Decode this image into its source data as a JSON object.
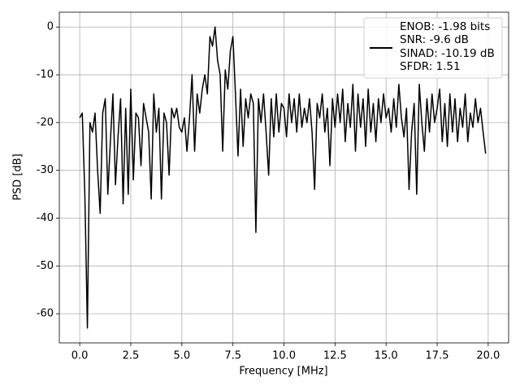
{
  "chart_data": {
    "type": "line",
    "xlabel": "Frequency [MHz]",
    "ylabel": "PSD [dB]",
    "x": [
      0,
      0.125,
      0.25,
      0.375,
      0.5,
      0.625,
      0.75,
      0.875,
      1,
      1.125,
      1.25,
      1.375,
      1.5,
      1.625,
      1.75,
      1.875,
      2,
      2.125,
      2.25,
      2.375,
      2.5,
      2.625,
      2.75,
      2.875,
      3,
      3.125,
      3.25,
      3.375,
      3.5,
      3.625,
      3.75,
      3.875,
      4,
      4.125,
      4.25,
      4.375,
      4.5,
      4.625,
      4.75,
      4.875,
      5,
      5.125,
      5.25,
      5.375,
      5.5,
      5.625,
      5.75,
      5.875,
      6,
      6.125,
      6.25,
      6.375,
      6.5,
      6.625,
      6.75,
      6.875,
      7,
      7.125,
      7.25,
      7.375,
      7.5,
      7.625,
      7.75,
      7.875,
      8,
      8.125,
      8.25,
      8.375,
      8.5,
      8.625,
      8.75,
      8.875,
      9,
      9.125,
      9.25,
      9.375,
      9.5,
      9.625,
      9.75,
      9.875,
      10,
      10.125,
      10.25,
      10.375,
      10.5,
      10.625,
      10.75,
      10.875,
      11,
      11.125,
      11.25,
      11.375,
      11.5,
      11.625,
      11.75,
      11.875,
      12,
      12.125,
      12.25,
      12.375,
      12.5,
      12.625,
      12.75,
      12.875,
      13,
      13.125,
      13.25,
      13.375,
      13.5,
      13.625,
      13.75,
      13.875,
      14,
      14.125,
      14.25,
      14.375,
      14.5,
      14.625,
      14.75,
      14.875,
      15,
      15.125,
      15.25,
      15.375,
      15.5,
      15.625,
      15.75,
      15.875,
      16,
      16.125,
      16.25,
      16.375,
      16.5,
      16.625,
      16.75,
      16.875,
      17,
      17.125,
      17.25,
      17.375,
      17.5,
      17.625,
      17.75,
      17.875,
      18,
      18.125,
      18.25,
      18.375,
      18.5,
      18.625,
      18.75,
      18.875,
      19,
      19.125,
      19.25,
      19.375,
      19.5,
      19.625,
      19.75,
      19.875
    ],
    "series": [
      {
        "name": "ENOB: -1.98 bits\nSNR: -9.6 dB\nSINAD: -10.19 dB\nSFDR: 1.51",
        "color": "#000000",
        "values": [
          -19,
          -18,
          -35,
          -63,
          -20,
          -22,
          -18,
          -30,
          -39,
          -18,
          -15,
          -35,
          -24,
          -14,
          -33,
          -23,
          -15,
          -37,
          -17,
          -35,
          -13,
          -32,
          -18,
          -19,
          -29,
          -16,
          -19,
          -22,
          -36,
          -14,
          -22,
          -17,
          -36,
          -18,
          -20,
          -31,
          -17,
          -19,
          -17,
          -21,
          -22,
          -19,
          -26,
          -19,
          -10,
          -26,
          -14,
          -18,
          -13,
          -10,
          -14,
          -2,
          -4,
          0,
          -7,
          -10,
          -26,
          -9,
          -13,
          -5,
          -2,
          -14,
          -27,
          -13,
          -25,
          -15,
          -19,
          -14,
          -16,
          -43,
          -15,
          -20,
          -14,
          -22,
          -31,
          -15,
          -23,
          -14,
          -22,
          -16,
          -17,
          -23,
          -14,
          -20,
          -15,
          -22,
          -14,
          -21,
          -17,
          -20,
          -15,
          -22,
          -34,
          -16,
          -19,
          -14,
          -22,
          -17,
          -29,
          -15,
          -21,
          -14,
          -20,
          -13,
          -24,
          -16,
          -21,
          -12,
          -26,
          -14,
          -21,
          -15,
          -25,
          -13,
          -22,
          -16,
          -24,
          -15,
          -20,
          -14,
          -19,
          -17,
          -22,
          -15,
          -21,
          -12,
          -19,
          -23,
          -17,
          -34,
          -22,
          -16,
          -35,
          -12,
          -20,
          -26,
          -15,
          -22,
          -14,
          -20,
          -17,
          -13,
          -24,
          -16,
          -25,
          -14,
          -22,
          -15,
          -24,
          -17,
          -21,
          -14,
          -24,
          -18,
          -21,
          -15,
          -20,
          -17,
          -22,
          -26.5
        ]
      }
    ],
    "xlim": [
      -1,
      21
    ],
    "ylim": [
      -66.1,
      3.1
    ],
    "xticks": [
      {
        "value": 0,
        "label": "0.0"
      },
      2.5,
      {
        "value": 5,
        "label": "5.0"
      },
      7.5,
      {
        "value": 10,
        "label": "10.0"
      },
      12.5,
      {
        "value": 15,
        "label": "15.0"
      },
      17.5,
      {
        "value": 20,
        "label": "20.0"
      }
    ],
    "yticks": [
      0,
      -10,
      -20,
      -30,
      -40,
      -50,
      -60
    ],
    "grid": true,
    "legend": "upper right"
  }
}
